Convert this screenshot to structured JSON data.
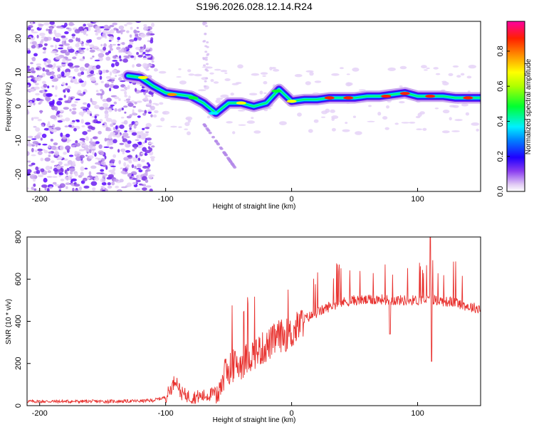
{
  "title": "S196.2026.028.12.14.R24",
  "chart_data": [
    {
      "type": "heatmap",
      "name": "spectrogram",
      "xlabel": "Height of straight line (km)",
      "ylabel": "Frequency (Hz)",
      "xlim": [
        -210,
        150
      ],
      "ylim": [
        -25,
        25
      ],
      "xticks": [
        "-200",
        "-100",
        "0",
        "100"
      ],
      "xtick_values": [
        -200,
        -100,
        0,
        100
      ],
      "yticks": [
        "20",
        "10",
        "0",
        "-10",
        "-20"
      ],
      "ytick_values": [
        20,
        10,
        0,
        -10,
        -20
      ],
      "colorbar": {
        "label": "Normalized spectral amplitude",
        "range": [
          0,
          0.97
        ],
        "ticks": [
          "0.0",
          "0.2",
          "0.4",
          "0.6",
          "0.8"
        ],
        "tick_values": [
          0.0,
          0.2,
          0.4,
          0.6,
          0.8
        ]
      },
      "ridge": {
        "x": [
          -130,
          -120,
          -110,
          -100,
          -90,
          -80,
          -70,
          -60,
          -50,
          -40,
          -30,
          -20,
          -10,
          0,
          10,
          20,
          30,
          40,
          50,
          60,
          70,
          80,
          90,
          100,
          110,
          120,
          130,
          140,
          150
        ],
        "y": [
          9,
          8.5,
          6,
          4,
          3.5,
          3,
          1,
          -2,
          1,
          1,
          0,
          1,
          5,
          1.5,
          2,
          2,
          2.5,
          2.5,
          2.5,
          3,
          3,
          3.5,
          4,
          3,
          3,
          3,
          2.5,
          2.5,
          2.5
        ]
      }
    },
    {
      "type": "line",
      "name": "snr",
      "xlabel": "Height of straight line (km)",
      "ylabel": "SNR (10 * v/v)",
      "xlim": [
        -210,
        150
      ],
      "ylim": [
        0,
        800
      ],
      "xticks": [
        "-200",
        "-100",
        "0",
        "100"
      ],
      "xtick_values": [
        -200,
        -100,
        0,
        100
      ],
      "yticks": [
        "0",
        "200",
        "400",
        "600",
        "800"
      ],
      "ytick_values": [
        0,
        200,
        400,
        600,
        800
      ],
      "color": "#e8312e",
      "x": [
        -210,
        -180,
        -150,
        -120,
        -110,
        -100,
        -95,
        -92,
        -88,
        -80,
        -70,
        -60,
        -50,
        -40,
        -30,
        -20,
        -10,
        0,
        10,
        20,
        30,
        40,
        50,
        60,
        70,
        80,
        90,
        100,
        110,
        120,
        130,
        140,
        150
      ],
      "y": [
        20,
        20,
        20,
        22,
        25,
        40,
        90,
        130,
        60,
        40,
        45,
        60,
        180,
        200,
        250,
        280,
        330,
        340,
        410,
        440,
        470,
        490,
        500,
        500,
        505,
        500,
        500,
        500,
        505,
        495,
        490,
        470,
        460
      ]
    }
  ]
}
